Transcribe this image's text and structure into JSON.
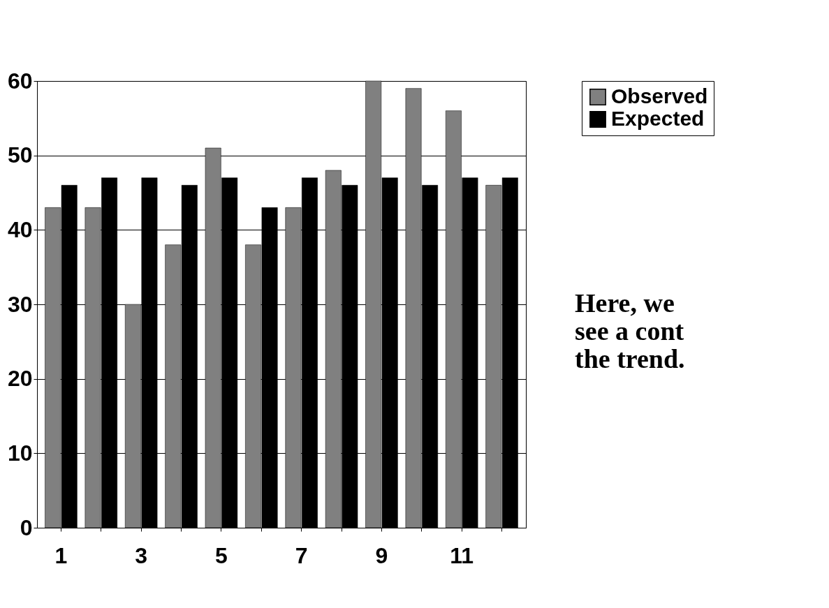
{
  "chart_data": {
    "type": "bar",
    "categories": [
      "1",
      null,
      "3",
      null,
      "5",
      null,
      "7",
      null,
      "9",
      null,
      "11",
      null
    ],
    "series": [
      {
        "name": "Observed",
        "color": "#808080",
        "values": [
          43,
          43,
          30,
          38,
          51,
          38,
          43,
          48,
          60,
          59,
          56,
          46
        ]
      },
      {
        "name": "Expected",
        "color": "#000000",
        "values": [
          46,
          47,
          47,
          46,
          47,
          43,
          47,
          46,
          47,
          46,
          47,
          47
        ]
      }
    ],
    "ylim": [
      0,
      60
    ],
    "yticks": [
      0,
      10,
      20,
      30,
      40,
      50,
      60
    ],
    "grid": "y",
    "legend": "top right",
    "annotations": [
      "Here, we",
      "see a cont",
      "the trend."
    ]
  }
}
